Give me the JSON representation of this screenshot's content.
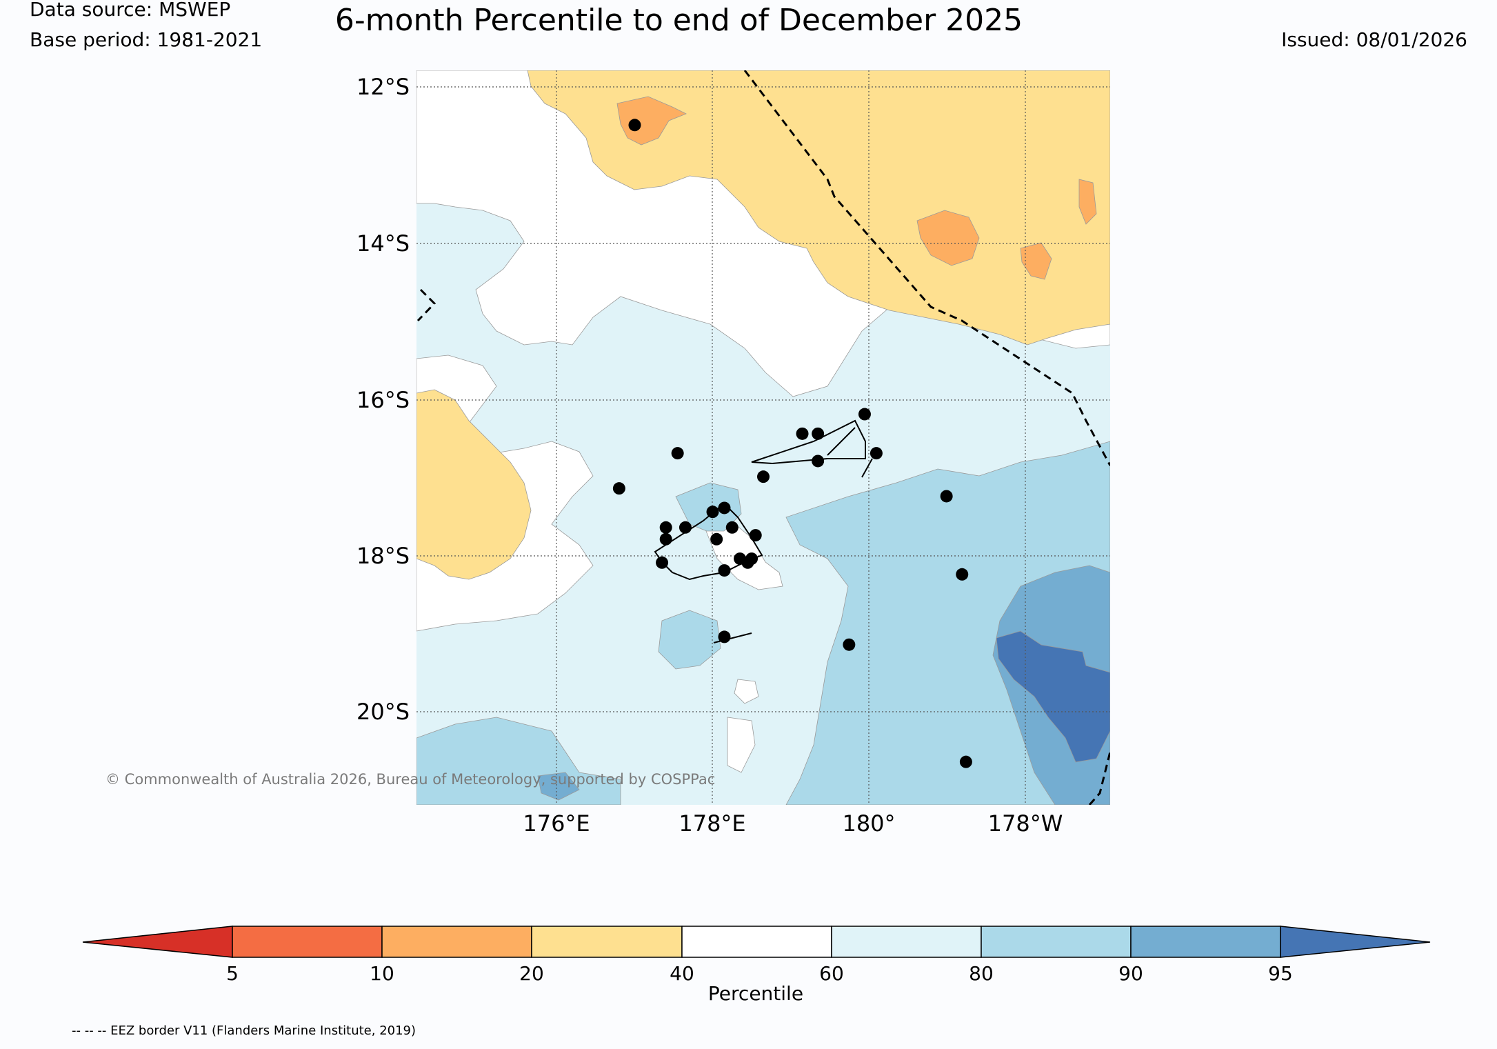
{
  "header": {
    "data_source": "Data source: MSWEP",
    "base_period": "Base period: 1981-2021",
    "title": "6-month Percentile to end of December 2025",
    "issued": "Issued: 08/01/2026"
  },
  "map": {
    "extent": {
      "lon_min": 174.2,
      "lon_max": 183.1,
      "lat_min": -21.2,
      "lat_max": -11.8
    },
    "lat_ticks": [
      {
        "value": -12,
        "label": "12°S"
      },
      {
        "value": -14,
        "label": "14°S"
      },
      {
        "value": -16,
        "label": "16°S"
      },
      {
        "value": -18,
        "label": "18°S"
      },
      {
        "value": -20,
        "label": "20°S"
      }
    ],
    "lon_ticks": [
      {
        "value": 176,
        "label": "176°E"
      },
      {
        "value": 178,
        "label": "178°E"
      },
      {
        "value": 180,
        "label": "180°"
      },
      {
        "value": 182,
        "label": "178°W"
      }
    ],
    "colors": {
      "below_5": "#d73027",
      "p5_10": "#f46d43",
      "p10_20": "#fdae61",
      "p20_40": "#fee090",
      "p40_60": "#ffffff",
      "p60_80": "#e0f3f8",
      "p80_90": "#abd9e9",
      "p90_95": "#74add1",
      "above_95": "#4575b4"
    },
    "stations": [
      {
        "lon": 177.0,
        "lat": -12.5
      },
      {
        "lon": 176.8,
        "lat": -17.15
      },
      {
        "lon": 177.55,
        "lat": -16.7
      },
      {
        "lon": 177.4,
        "lat": -17.65
      },
      {
        "lon": 177.65,
        "lat": -17.65
      },
      {
        "lon": 177.4,
        "lat": -17.8
      },
      {
        "lon": 177.35,
        "lat": -18.1
      },
      {
        "lon": 178.0,
        "lat": -17.45
      },
      {
        "lon": 178.15,
        "lat": -17.4
      },
      {
        "lon": 178.25,
        "lat": -17.65
      },
      {
        "lon": 178.05,
        "lat": -17.8
      },
      {
        "lon": 178.55,
        "lat": -17.75
      },
      {
        "lon": 178.35,
        "lat": -18.05
      },
      {
        "lon": 178.5,
        "lat": -18.05
      },
      {
        "lon": 178.45,
        "lat": -18.1
      },
      {
        "lon": 178.15,
        "lat": -18.2
      },
      {
        "lon": 178.65,
        "lat": -17.0
      },
      {
        "lon": 179.15,
        "lat": -16.45
      },
      {
        "lon": 179.35,
        "lat": -16.45
      },
      {
        "lon": 179.35,
        "lat": -16.8
      },
      {
        "lon": 179.95,
        "lat": -16.2
      },
      {
        "lon": 180.1,
        "lat": -16.7
      },
      {
        "lon": 181.0,
        "lat": -17.25
      },
      {
        "lon": 181.2,
        "lat": -18.25
      },
      {
        "lon": 178.15,
        "lat": -19.05
      },
      {
        "lon": 179.75,
        "lat": -19.15
      },
      {
        "lon": 181.25,
        "lat": -20.65
      }
    ]
  },
  "copyright": "© Commonwealth of Australia 2026, Bureau of Meteorology, supported by COSPPac",
  "colorbar": {
    "label": "Percentile",
    "ticks": [
      "5",
      "10",
      "20",
      "40",
      "60",
      "80",
      "90",
      "95"
    ],
    "segments": [
      "#d73027",
      "#f46d43",
      "#fdae61",
      "#fee090",
      "#ffffff",
      "#e0f3f8",
      "#abd9e9",
      "#74add1",
      "#4575b4"
    ]
  },
  "eez_note": "-- -- -- EEZ border V11 (Flanders Marine Institute, 2019)"
}
